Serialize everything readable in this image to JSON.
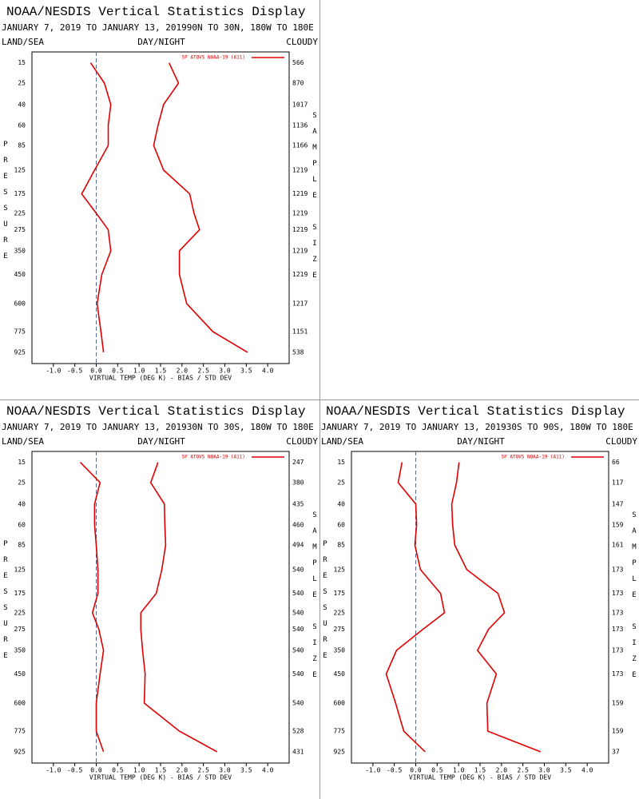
{
  "chart_data": [
    {
      "type": "line",
      "title": "NOAA/NESDIS Vertical Statistics Display",
      "subtitle": "JANUARY 7, 2019 TO JANUARY 13, 201990N TO 30N, 180W TO 180E",
      "left_label": "LAND/SEA",
      "center_label": "DAY/NIGHT",
      "right_label": "CLOUDY",
      "ylabel": "PRESSURE",
      "y2label": "SAMPLE SIZE",
      "xlabel": "VIRTUAL TEMP (DEG K) - BIAS / STD DEV",
      "categories": [
        15,
        25,
        40,
        60,
        85,
        125,
        175,
        225,
        275,
        350,
        450,
        600,
        775,
        925
      ],
      "sample_size": [
        566,
        870,
        1017,
        1136,
        1166,
        1219,
        1219,
        1219,
        1219,
        1219,
        1219,
        1217,
        1151,
        538
      ],
      "series": [
        {
          "name": "SP ATOVS NOAA-19 (A11)",
          "color": "#e00000",
          "values": [
            -0.13,
            0.19,
            0.34,
            0.28,
            0.28,
            -0.04,
            -0.34,
            0.0,
            0.28,
            0.34,
            0.13,
            0.02,
            0.11,
            0.17
          ],
          "std_dev": [
            1.7,
            1.92,
            1.57,
            1.44,
            1.34,
            1.57,
            2.18,
            2.28,
            2.41,
            1.94,
            1.94,
            2.11,
            2.72,
            3.53
          ]
        }
      ],
      "xlim": [
        -1.5,
        4.5
      ],
      "ylim": [
        11,
        1015
      ],
      "xticks": [
        {
          "value": -1,
          "label": "-1.0"
        },
        {
          "value": -0.5,
          "label": "-0.5"
        },
        {
          "value": 0,
          "label": "0.0"
        },
        0.5,
        {
          "value": 1,
          "label": "1.0"
        },
        1.5,
        {
          "value": 2,
          "label": "2.0"
        },
        2.5,
        {
          "value": 3,
          "label": "3.0"
        },
        3.5,
        {
          "value": 4,
          "label": "4.0"
        }
      ]
    },
    {
      "type": "line",
      "title": "NOAA/NESDIS Vertical Statistics Display",
      "subtitle": "JANUARY 7, 2019 TO JANUARY 13, 201930N TO 30S, 180W TO 180E",
      "left_label": "LAND/SEA",
      "center_label": "DAY/NIGHT",
      "right_label": "CLOUDY",
      "ylabel": "PRESSURE",
      "y2label": "SAMPLE SIZE",
      "xlabel": "VIRTUAL TEMP (DEG K) - BIAS / STD DEV",
      "categories": [
        15,
        25,
        40,
        60,
        85,
        125,
        175,
        225,
        275,
        350,
        450,
        600,
        775,
        925
      ],
      "sample_size": [
        247,
        380,
        435,
        460,
        494,
        540,
        540,
        540,
        540,
        540,
        540,
        540,
        528,
        431
      ],
      "series": [
        {
          "name": "SP ATOVS NOAA-19 (A11)",
          "color": "#e00000",
          "values": [
            -0.37,
            0.09,
            -0.04,
            -0.04,
            0.0,
            0.04,
            0.04,
            -0.09,
            0.06,
            0.17,
            0.09,
            0.0,
            0.0,
            0.17
          ],
          "std_dev": [
            1.44,
            1.27,
            1.59,
            1.6,
            1.62,
            1.53,
            1.4,
            1.04,
            1.04,
            1.08,
            1.14,
            1.12,
            1.94,
            2.82
          ]
        }
      ],
      "xlim": [
        -1.5,
        4.5
      ],
      "ylim": [
        11,
        1015
      ],
      "xticks": [
        {
          "value": -1,
          "label": "-1.0"
        },
        {
          "value": -0.5,
          "label": "-0.5"
        },
        {
          "value": 0,
          "label": "0.0"
        },
        0.5,
        {
          "value": 1,
          "label": "1.0"
        },
        1.5,
        {
          "value": 2,
          "label": "2.0"
        },
        2.5,
        {
          "value": 3,
          "label": "3.0"
        },
        3.5,
        {
          "value": 4,
          "label": "4.0"
        }
      ]
    },
    {
      "type": "line",
      "title": "NOAA/NESDIS Vertical Statistics Display",
      "subtitle": "JANUARY 7, 2019 TO JANUARY 13, 201930S TO 90S, 180W TO 180E",
      "left_label": "LAND/SEA",
      "center_label": "DAY/NIGHT",
      "right_label": "CLOUDY",
      "ylabel": "PRESSURE",
      "y2label": "SAMPLE SIZE",
      "xlabel": "VIRTUAL TEMP (DEG K) - BIAS / STD DEV",
      "categories": [
        15,
        25,
        40,
        60,
        85,
        125,
        175,
        225,
        275,
        350,
        450,
        600,
        775,
        925
      ],
      "sample_size": [
        66,
        117,
        147,
        159,
        161,
        173,
        173,
        173,
        173,
        173,
        173,
        159,
        159,
        37
      ],
      "series": [
        {
          "name": "SP ATOVS NOAA-19 (A11)",
          "color": "#e00000",
          "values": [
            -0.32,
            -0.41,
            0.0,
            0.02,
            -0.02,
            0.11,
            0.58,
            0.67,
            0.17,
            -0.45,
            -0.69,
            -0.47,
            -0.28,
            0.22
          ],
          "std_dev": [
            1.01,
            0.95,
            0.84,
            0.86,
            0.91,
            1.19,
            1.92,
            2.07,
            1.7,
            1.44,
            1.88,
            1.66,
            1.68,
            2.91
          ]
        }
      ],
      "xlim": [
        -1.5,
        4.5
      ],
      "ylim": [
        11,
        1015
      ],
      "xticks": [
        {
          "value": -1,
          "label": "-1.0"
        },
        {
          "value": -0.5,
          "label": "-0.5"
        },
        {
          "value": 0,
          "label": "0.0"
        },
        0.5,
        {
          "value": 1,
          "label": "1.0"
        },
        1.5,
        {
          "value": 2,
          "label": "2.0"
        },
        2.5,
        {
          "value": 3,
          "label": "3.0"
        },
        3.5,
        {
          "value": 4,
          "label": "4.0"
        }
      ]
    }
  ]
}
